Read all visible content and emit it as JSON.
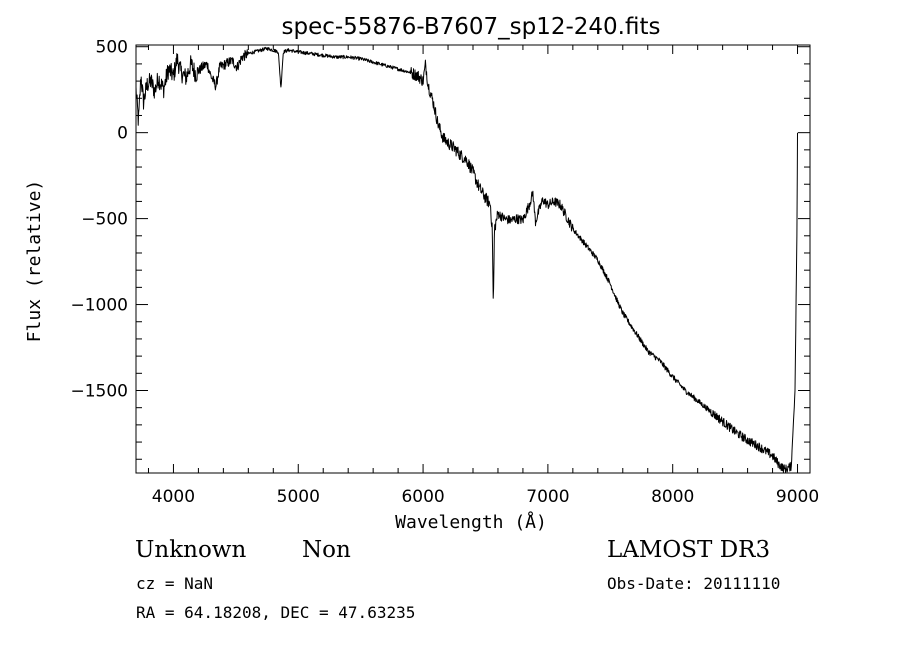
{
  "chart_data": {
    "type": "line",
    "title": "spec-55876-B7607_sp12-240.fits",
    "xlabel": "Wavelength (Å)",
    "ylabel": "Flux (relative)",
    "xlim": [
      3700,
      9100
    ],
    "ylim": [
      -1980,
      510
    ],
    "xticks": [
      4000,
      5000,
      6000,
      7000,
      8000,
      9000
    ],
    "yticks": [
      500,
      0,
      -500,
      -1000,
      -1500
    ],
    "grid": false,
    "series": [
      {
        "name": "spectrum",
        "anchors": [
          [
            3700,
            250
          ],
          [
            3720,
            60
          ],
          [
            3740,
            330
          ],
          [
            3760,
            180
          ],
          [
            3790,
            280
          ],
          [
            3820,
            300
          ],
          [
            3850,
            240
          ],
          [
            3880,
            320
          ],
          [
            3920,
            250
          ],
          [
            3960,
            370
          ],
          [
            4000,
            330
          ],
          [
            4030,
            430
          ],
          [
            4060,
            350
          ],
          [
            4101,
            320
          ],
          [
            4140,
            400
          ],
          [
            4180,
            340
          ],
          [
            4230,
            380
          ],
          [
            4270,
            400
          ],
          [
            4300,
            330
          ],
          [
            4340,
            270
          ],
          [
            4370,
            380
          ],
          [
            4420,
            400
          ],
          [
            4470,
            420
          ],
          [
            4510,
            380
          ],
          [
            4550,
            440
          ],
          [
            4600,
            460
          ],
          [
            4650,
            470
          ],
          [
            4700,
            480
          ],
          [
            4750,
            490
          ],
          [
            4800,
            480
          ],
          [
            4840,
            470
          ],
          [
            4861,
            260
          ],
          [
            4880,
            470
          ],
          [
            4920,
            480
          ],
          [
            5000,
            470
          ],
          [
            5100,
            460
          ],
          [
            5200,
            450
          ],
          [
            5300,
            440
          ],
          [
            5400,
            440
          ],
          [
            5500,
            430
          ],
          [
            5600,
            410
          ],
          [
            5700,
            390
          ],
          [
            5800,
            370
          ],
          [
            5900,
            350
          ],
          [
            5960,
            330
          ],
          [
            6000,
            300
          ],
          [
            6020,
            400
          ],
          [
            6040,
            280
          ],
          [
            6080,
            180
          ],
          [
            6120,
            50
          ],
          [
            6160,
            -30
          ],
          [
            6200,
            -60
          ],
          [
            6250,
            -90
          ],
          [
            6300,
            -130
          ],
          [
            6350,
            -160
          ],
          [
            6400,
            -230
          ],
          [
            6450,
            -320
          ],
          [
            6500,
            -380
          ],
          [
            6540,
            -420
          ],
          [
            6555,
            -580
          ],
          [
            6563,
            -1020
          ],
          [
            6572,
            -560
          ],
          [
            6600,
            -470
          ],
          [
            6650,
            -500
          ],
          [
            6700,
            -510
          ],
          [
            6750,
            -500
          ],
          [
            6800,
            -510
          ],
          [
            6850,
            -420
          ],
          [
            6880,
            -350
          ],
          [
            6900,
            -520
          ],
          [
            6930,
            -450
          ],
          [
            6960,
            -390
          ],
          [
            7000,
            -420
          ],
          [
            7050,
            -400
          ],
          [
            7100,
            -420
          ],
          [
            7150,
            -490
          ],
          [
            7200,
            -560
          ],
          [
            7300,
            -650
          ],
          [
            7400,
            -740
          ],
          [
            7500,
            -880
          ],
          [
            7550,
            -970
          ],
          [
            7600,
            -1050
          ],
          [
            7700,
            -1160
          ],
          [
            7800,
            -1270
          ],
          [
            7900,
            -1330
          ],
          [
            8000,
            -1420
          ],
          [
            8100,
            -1500
          ],
          [
            8200,
            -1560
          ],
          [
            8300,
            -1620
          ],
          [
            8400,
            -1680
          ],
          [
            8500,
            -1740
          ],
          [
            8600,
            -1790
          ],
          [
            8700,
            -1830
          ],
          [
            8800,
            -1880
          ],
          [
            8850,
            -1930
          ],
          [
            8900,
            -1960
          ],
          [
            8950,
            -1940
          ],
          [
            8980,
            -1500
          ],
          [
            8995,
            -600
          ],
          [
            9000,
            0
          ]
        ]
      }
    ]
  },
  "annotations": {
    "object_class": "Unknown",
    "subclass": "Non",
    "survey": "LAMOST DR3",
    "cz": "cz = NaN",
    "obs_date": "Obs-Date: 20111110",
    "coords": "RA =  64.18208, DEC =  47.63235"
  }
}
